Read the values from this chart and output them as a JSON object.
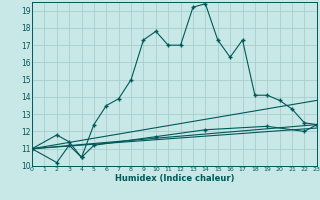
{
  "xlabel": "Humidex (Indice chaleur)",
  "background_color": "#c8e8e8",
  "grid_color": "#a8cece",
  "line_color": "#005858",
  "xlim": [
    0,
    23
  ],
  "ylim": [
    10,
    19.5
  ],
  "xticks": [
    0,
    1,
    2,
    3,
    4,
    5,
    6,
    7,
    8,
    9,
    10,
    11,
    12,
    13,
    14,
    15,
    16,
    17,
    18,
    19,
    20,
    21,
    22,
    23
  ],
  "yticks": [
    10,
    11,
    12,
    13,
    14,
    15,
    16,
    17,
    18,
    19
  ],
  "curve1_x": [
    0,
    2,
    3,
    4,
    5,
    6,
    7,
    8,
    9,
    10,
    11,
    12,
    13,
    14,
    15,
    16,
    17,
    18,
    19,
    20,
    21,
    22,
    23
  ],
  "curve1_y": [
    11.0,
    11.8,
    11.4,
    10.5,
    12.4,
    13.5,
    13.9,
    15.0,
    17.3,
    17.8,
    17.0,
    17.0,
    19.2,
    19.4,
    17.3,
    16.3,
    17.3,
    14.1,
    14.1,
    13.8,
    13.3,
    12.5,
    12.4
  ],
  "curve2_x": [
    0,
    2,
    3,
    4,
    5,
    10,
    14,
    19,
    22,
    23
  ],
  "curve2_y": [
    11.0,
    10.2,
    11.2,
    10.5,
    11.2,
    11.7,
    12.1,
    12.3,
    12.0,
    12.4
  ],
  "curve3_x": [
    0,
    23
  ],
  "curve3_y": [
    11.0,
    13.8
  ],
  "curve4_x": [
    0,
    23
  ],
  "curve4_y": [
    11.0,
    12.4
  ],
  "curve5_x": [
    0,
    23
  ],
  "curve5_y": [
    11.0,
    12.2
  ]
}
